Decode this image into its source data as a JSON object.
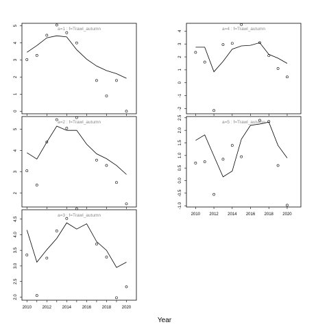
{
  "figure": {
    "xlabel": "Year"
  },
  "chart_data": [
    {
      "type": "line",
      "title": "a=1 : f=Trawl_autumn",
      "xlim": [
        2009.5,
        2021
      ],
      "ylim": [
        -0.15,
        5.15
      ],
      "xticks": [
        2010,
        2012,
        2014,
        2016,
        2018,
        2020
      ],
      "show_xtick_labels": false,
      "yticks": [
        0,
        1,
        2,
        3,
        4,
        5
      ],
      "line": {
        "x": [
          2010,
          2011,
          2012,
          2013,
          2014,
          2015,
          2016,
          2017,
          2018,
          2019,
          2020
        ],
        "y": [
          3.45,
          3.85,
          4.3,
          4.42,
          4.35,
          3.6,
          3.05,
          2.65,
          2.38,
          2.2,
          1.93
        ]
      },
      "points": {
        "x": [
          2010,
          2011,
          2012,
          2013,
          2014,
          2015,
          2017,
          2018,
          2019,
          2020
        ],
        "y": [
          3.02,
          3.27,
          4.45,
          5.05,
          4.6,
          4.0,
          1.8,
          0.9,
          1.8,
          0.0
        ]
      }
    },
    {
      "type": "line",
      "title": "a=2 : f=Trawl_autumn",
      "xlim": [
        2009.5,
        2021
      ],
      "ylim": [
        1.35,
        5.6
      ],
      "xticks": [
        2010,
        2012,
        2014,
        2016,
        2018,
        2020
      ],
      "show_xtick_labels": false,
      "yticks": [
        2,
        3,
        4,
        5
      ],
      "line": {
        "x": [
          2010,
          2011,
          2012,
          2013,
          2014,
          2015,
          2016,
          2017,
          2018,
          2019,
          2020
        ],
        "y": [
          3.9,
          3.6,
          4.4,
          5.15,
          4.95,
          4.95,
          4.3,
          3.85,
          3.62,
          3.3,
          2.88
        ]
      },
      "points": {
        "x": [
          2010,
          2011,
          2012,
          2013,
          2014,
          2015,
          2017,
          2018,
          2019,
          2020
        ],
        "y": [
          3.05,
          2.38,
          4.4,
          5.45,
          5.05,
          5.55,
          3.55,
          3.3,
          2.5,
          1.5
        ]
      }
    },
    {
      "type": "line",
      "title": "a=3 : f=Trawl_autumn",
      "xlim": [
        2009.5,
        2021
      ],
      "ylim": [
        1.9,
        4.8
      ],
      "xticks": [
        2010,
        2011,
        2012,
        2013,
        2014,
        2015,
        2016,
        2017,
        2018,
        2019,
        2020
      ],
      "show_xtick_labels": true,
      "xticklabels": [
        "2010",
        "",
        "2012",
        "",
        "2014",
        "",
        "2016",
        "",
        "2018",
        "",
        "2020"
      ],
      "yticks": [
        2.0,
        2.5,
        3.0,
        3.5,
        4.0,
        4.5
      ],
      "yticklabels": [
        "2.0",
        "2.5",
        "3.0",
        "3.5",
        "4.0",
        "4.5"
      ],
      "line": {
        "x": [
          2010,
          2011,
          2012,
          2013,
          2014,
          2015,
          2016,
          2017,
          2018,
          2019,
          2020
        ],
        "y": [
          4.15,
          3.12,
          3.52,
          3.88,
          4.38,
          4.18,
          4.35,
          3.78,
          3.5,
          2.95,
          3.12
        ]
      },
      "points": {
        "x": [
          2010,
          2011,
          2012,
          2013,
          2014,
          2015,
          2017,
          2018,
          2019,
          2020
        ],
        "y": [
          3.35,
          2.05,
          3.25,
          4.12,
          4.52,
          4.83,
          3.7,
          3.28,
          1.98,
          2.33
        ]
      }
    },
    {
      "type": "line",
      "title": "a=4 : f=Trawl_autumn",
      "xlim": [
        2009,
        2021.5
      ],
      "ylim": [
        -2.4,
        4.6
      ],
      "xticks": [
        2010,
        2012,
        2014,
        2016,
        2018,
        2020
      ],
      "show_xtick_labels": false,
      "yticks": [
        -2,
        -1,
        0,
        1,
        2,
        3,
        4
      ],
      "line": {
        "x": [
          2010,
          2011,
          2012,
          2013,
          2014,
          2015,
          2016,
          2017,
          2018,
          2019,
          2020
        ],
        "y": [
          2.75,
          2.75,
          0.85,
          1.65,
          2.6,
          2.85,
          2.9,
          3.1,
          2.2,
          1.9,
          1.5
        ]
      },
      "points": {
        "x": [
          2010,
          2011,
          2012,
          2013,
          2014,
          2015,
          2017,
          2018,
          2019,
          2020
        ],
        "y": [
          2.35,
          1.6,
          -2.15,
          2.95,
          3.05,
          4.5,
          3.1,
          2.1,
          1.1,
          0.45
        ]
      }
    },
    {
      "type": "line",
      "title": "a=5 : f=Trawl_autumn",
      "xlim": [
        2009,
        2021.5
      ],
      "ylim": [
        -1.05,
        2.55
      ],
      "xticks": [
        2010,
        2012,
        2014,
        2016,
        2018,
        2020
      ],
      "show_xtick_labels": true,
      "xticklabels": [
        "2010",
        "2012",
        "2014",
        "2016",
        "2018",
        "2020"
      ],
      "yticks": [
        -1.0,
        -0.5,
        0.0,
        0.5,
        1.0,
        1.5,
        2.0,
        2.5
      ],
      "yticklabels": [
        "-1.0",
        "-0.5",
        "0.0",
        "0.5",
        "1.0",
        "1.5",
        "2.0",
        "2.5"
      ],
      "line": {
        "x": [
          2010,
          2011,
          2012,
          2013,
          2014,
          2015,
          2016,
          2017,
          2018,
          2019,
          2020
        ],
        "y": [
          1.6,
          1.82,
          0.98,
          0.15,
          0.38,
          1.65,
          2.2,
          2.25,
          2.33,
          1.4,
          0.9
        ]
      },
      "points": {
        "x": [
          2010,
          2011,
          2012,
          2013,
          2014,
          2015,
          2017,
          2018,
          2019,
          2020
        ],
        "y": [
          0.7,
          0.75,
          -0.55,
          0.85,
          1.4,
          0.95,
          2.4,
          2.35,
          0.6,
          -0.98
        ]
      }
    }
  ]
}
